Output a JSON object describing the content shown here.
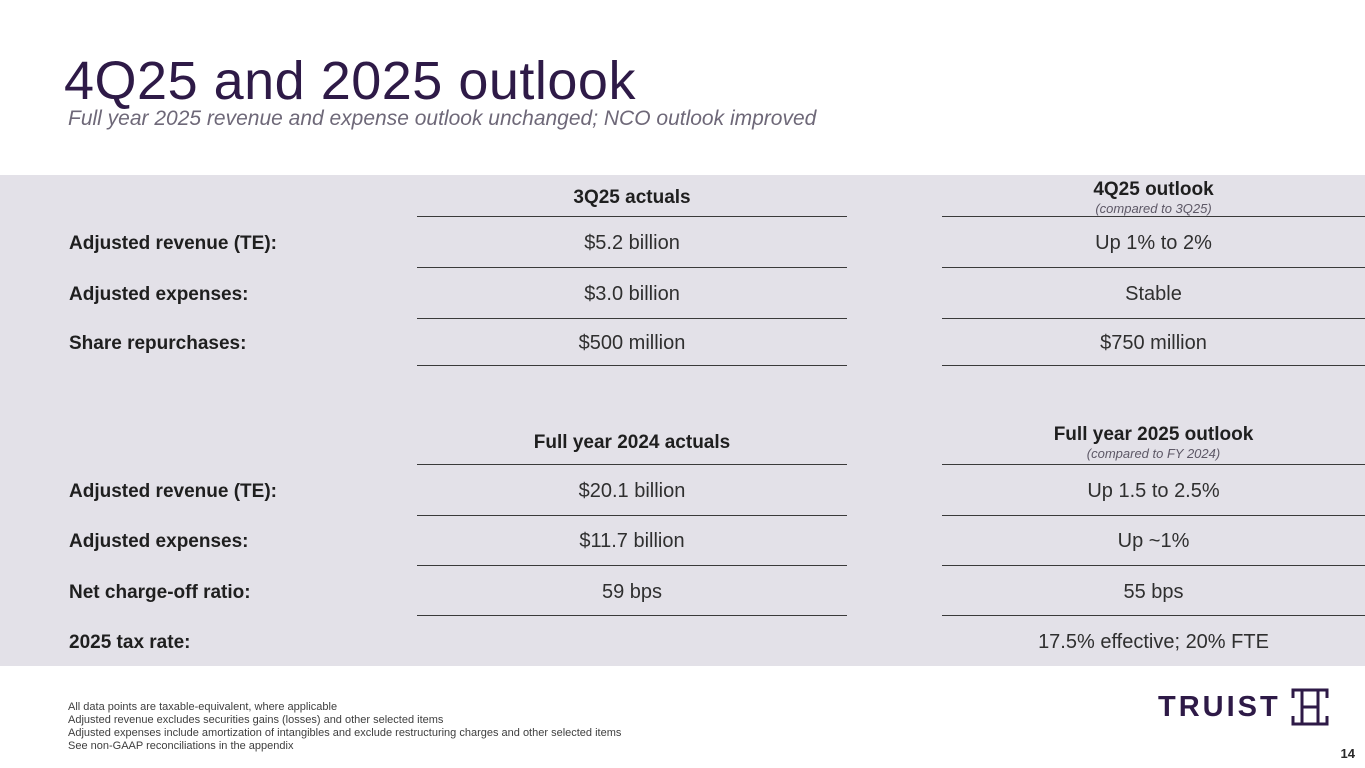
{
  "title": "4Q25 and 2025 outlook",
  "subtitle": "Full year 2025 revenue and expense outlook unchanged; NCO outlook improved",
  "table1": {
    "col1_header": "3Q25 actuals",
    "col2_header": "4Q25 outlook",
    "col2_sub": "(compared to 3Q25)",
    "rows": [
      {
        "label": "Adjusted revenue (TE):",
        "actual": "$5.2 billion",
        "outlook": "Up 1% to 2%"
      },
      {
        "label": "Adjusted expenses:",
        "actual": "$3.0 billion",
        "outlook": "Stable"
      },
      {
        "label": "Share repurchases:",
        "actual": "$500 million",
        "outlook": "$750 million"
      }
    ]
  },
  "table2": {
    "col1_header": "Full year 2024 actuals",
    "col2_header": "Full year 2025 outlook",
    "col2_sub": "(compared to FY 2024)",
    "rows": [
      {
        "label": "Adjusted revenue (TE):",
        "actual": "$20.1 billion",
        "outlook": "Up 1.5 to 2.5%"
      },
      {
        "label": "Adjusted expenses:",
        "actual": "$11.7 billion",
        "outlook": "Up ~1%"
      },
      {
        "label": "Net charge-off ratio:",
        "actual": "59 bps",
        "outlook": "55 bps"
      },
      {
        "label": "2025 tax rate:",
        "actual": "",
        "outlook": "17.5% effective; 20% FTE"
      }
    ]
  },
  "footnotes": [
    "All data points are taxable-equivalent, where applicable",
    "Adjusted revenue excludes securities gains (losses) and other selected items",
    "Adjusted expenses include amortization of intangibles and exclude restructuring charges and other selected items",
    "See non-GAAP reconciliations in the appendix"
  ],
  "logo": {
    "text": "TRUIST",
    "icon": "truist-logo-icon"
  },
  "page_number": "14",
  "colors": {
    "brand": "#2e1a47",
    "band": "#e3e1e8"
  }
}
